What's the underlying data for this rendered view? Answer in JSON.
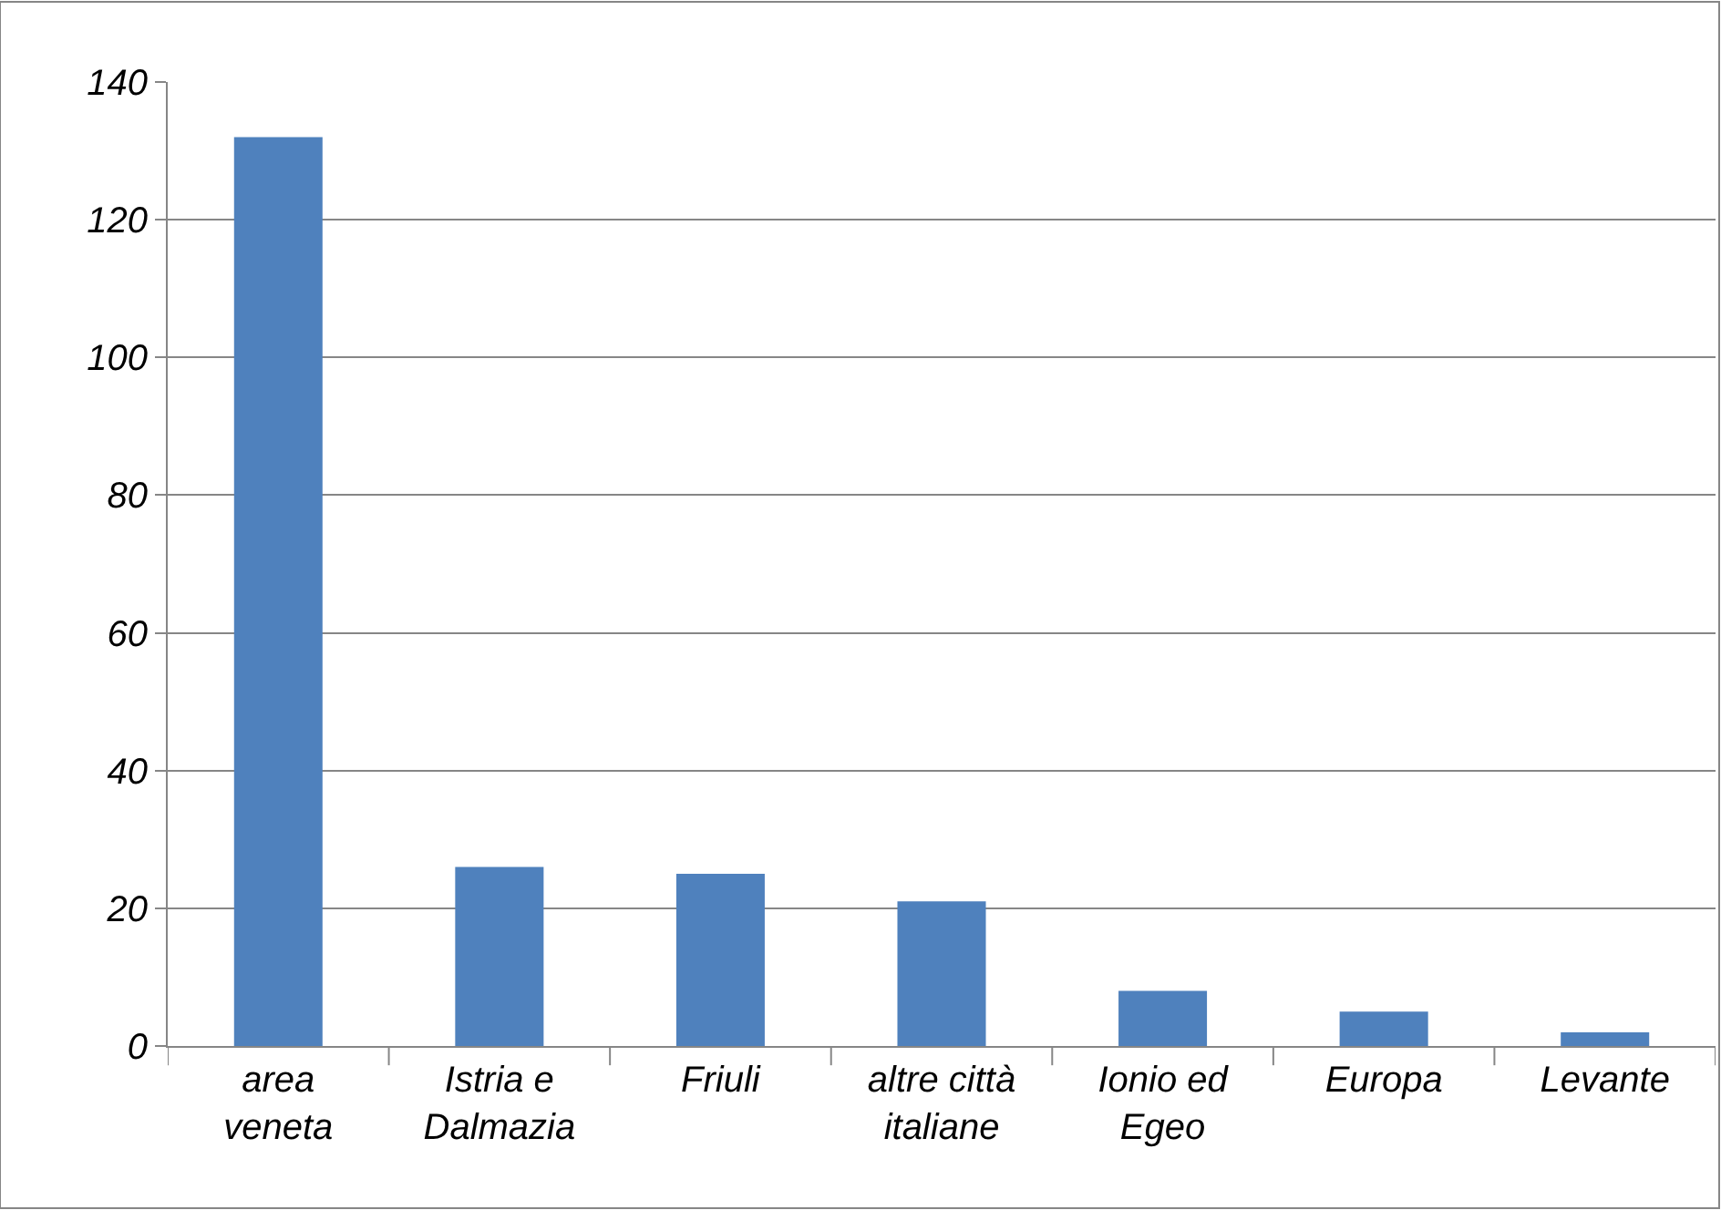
{
  "chart_data": {
    "type": "bar",
    "categories": [
      "area veneta",
      "Istria e Dalmazia",
      "Friuli",
      "altre città italiane",
      "Ionio ed Egeo",
      "Europa",
      "Levante"
    ],
    "values": [
      132,
      26,
      25,
      21,
      8,
      5,
      2
    ],
    "color": "#4f81bd",
    "ylim": [
      0,
      140
    ],
    "yticks": [
      0,
      20,
      40,
      60,
      80,
      100,
      120,
      140
    ],
    "grid": "y"
  }
}
